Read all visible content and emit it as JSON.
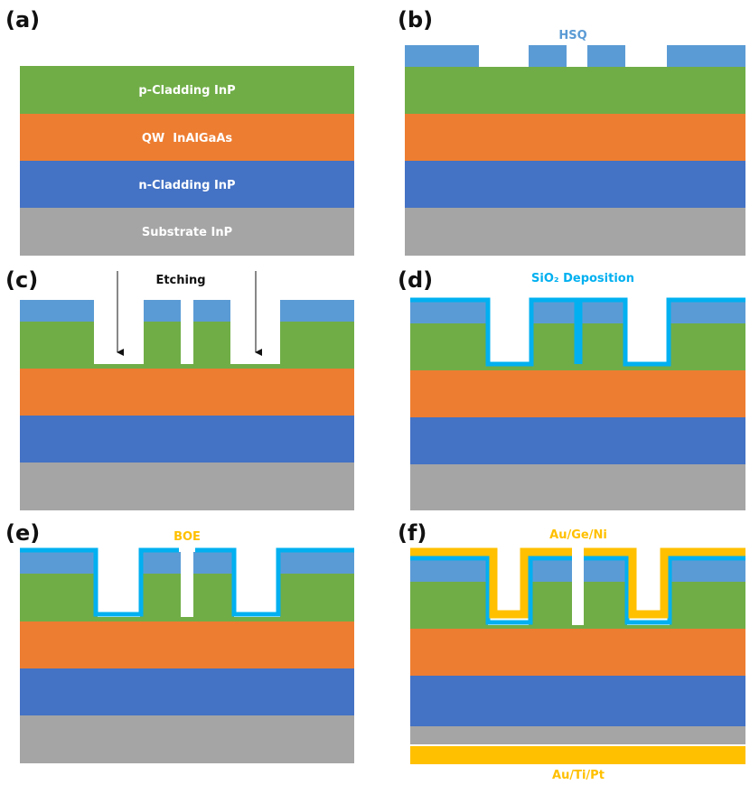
{
  "colors": {
    "green": "#70AD47",
    "orange": "#ED7D31",
    "blue": "#4472C4",
    "gray": "#A5A5A5",
    "hsq": "#5B9BD5",
    "sio2": "#00B0F0",
    "gold": "#FFC000",
    "black": "#111111"
  },
  "panels": {
    "a": {
      "label": "(a)",
      "layers": {
        "p_cladding": "p-Cladding InP",
        "qw": "QW  InAlGaAs",
        "n_cladding": "n-Cladding InP",
        "substrate": "Substrate InP"
      }
    },
    "b": {
      "label": "(b)",
      "annotation": "HSQ"
    },
    "c": {
      "label": "(c)",
      "annotation": "Etching"
    },
    "d": {
      "label": "(d)",
      "annotation": "SiO₂ Deposition"
    },
    "e": {
      "label": "(e)",
      "annotation": "BOE"
    },
    "f": {
      "label": "(f)",
      "annotation_top": "Au/Ge/Ni",
      "annotation_bottom": "Au/Ti/Pt"
    }
  }
}
